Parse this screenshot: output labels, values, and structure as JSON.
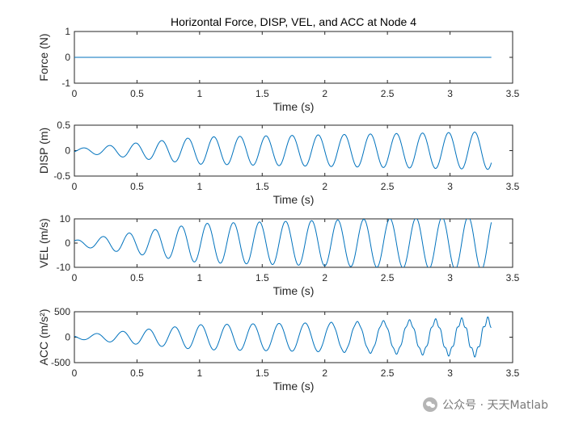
{
  "chart_data": [
    {
      "type": "line",
      "title": "Horizontal Force, DISP, VEL, and ACC at Node 4",
      "xlabel": "Time (s)",
      "ylabel": "Force (N)",
      "xlim": [
        0,
        3.5
      ],
      "ylim": [
        -1,
        1
      ],
      "xticks": [
        "0",
        "0.5",
        "1",
        "1.5",
        "2",
        "2.5",
        "3",
        "3.5"
      ],
      "yticks": [
        "-1",
        "0",
        "1"
      ],
      "ytick_values": [
        -1,
        0,
        1
      ],
      "t_end": 3.33,
      "series": [
        {
          "waveform": "zero",
          "amplitude": 0,
          "color": "#0072bd"
        }
      ]
    },
    {
      "type": "line",
      "title": "",
      "xlabel": "Time (s)",
      "ylabel": "DISP (m)",
      "xlim": [
        0,
        3.5
      ],
      "ylim": [
        -0.5,
        0.5
      ],
      "xticks": [
        "0",
        "0.5",
        "1",
        "1.5",
        "2",
        "2.5",
        "3",
        "3.5"
      ],
      "yticks": [
        "-0.5",
        "0",
        "0.5"
      ],
      "ytick_values": [
        -0.5,
        0,
        0.5
      ],
      "t_end": 3.33,
      "series": [
        {
          "waveform": "disp",
          "amplitude": 0.37,
          "frequency_hz": 4.8,
          "color": "#0072bd"
        }
      ]
    },
    {
      "type": "line",
      "title": "",
      "xlabel": "Time (s)",
      "ylabel": "VEL (m/s)",
      "xlim": [
        0,
        3.5
      ],
      "ylim": [
        -10,
        10
      ],
      "xticks": [
        "0",
        "0.5",
        "1",
        "1.5",
        "2",
        "2.5",
        "3",
        "3.5"
      ],
      "yticks": [
        "-10",
        "0",
        "10"
      ],
      "ytick_values": [
        -10,
        0,
        10
      ],
      "t_end": 3.33,
      "series": [
        {
          "waveform": "vel",
          "amplitude": 11.2,
          "frequency_hz": 4.8,
          "color": "#0072bd"
        }
      ]
    },
    {
      "type": "line",
      "title": "",
      "xlabel": "Time (s)",
      "ylabel": "ACC (m/s²)",
      "xlim": [
        0,
        3.5
      ],
      "ylim": [
        -500,
        500
      ],
      "xticks": [
        "0",
        "0.5",
        "1",
        "1.5",
        "2",
        "2.5",
        "3",
        "3.5"
      ],
      "yticks": [
        "-500",
        "0",
        "500"
      ],
      "ytick_values": [
        -500,
        0,
        500
      ],
      "t_end": 3.33,
      "series": [
        {
          "waveform": "acc",
          "amplitude": 340,
          "frequency_hz": 4.8,
          "color": "#0072bd"
        }
      ]
    }
  ],
  "watermark": {
    "text": "公众号 · 天天Matlab",
    "icon": "wechat-icon"
  }
}
